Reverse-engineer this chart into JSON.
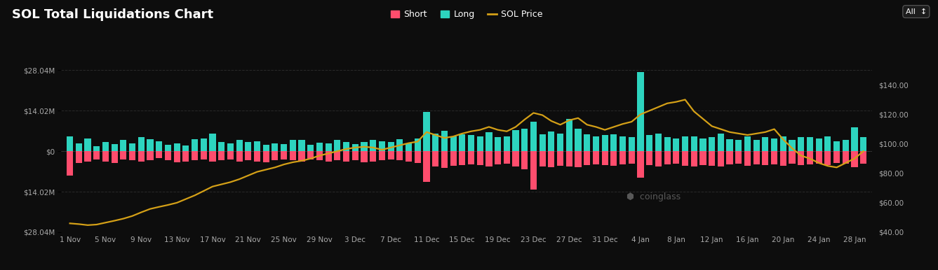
{
  "title": "SOL Total Liquidations Chart",
  "bg_color": "#0d0d0d",
  "plot_bg_color": "#0d0d0d",
  "bar_color_long": "#2dd4bf",
  "bar_color_short": "#ff4d6d",
  "price_line_color": "#d4a017",
  "grid_color": "#2a2a2a",
  "text_color": "#ffffff",
  "tick_label_color": "#aaaaaa",
  "left_ylim": [
    -28.04,
    28.04
  ],
  "right_ylim": [
    40,
    150
  ],
  "left_yticks": [
    28.04,
    14.02,
    0,
    -14.02,
    -28.04
  ],
  "left_yticklabels": [
    "$28.04M",
    "$14.02M",
    "$0",
    "$14.02M",
    "$28.04M"
  ],
  "right_yticks": [
    140,
    120,
    100,
    80,
    60,
    40
  ],
  "right_yticklabels": [
    "$140.00",
    "$120.00",
    "$100.00",
    "$80.00",
    "$60.00",
    "$40.00"
  ],
  "xtick_positions": [
    0,
    4,
    8,
    12,
    16,
    20,
    24,
    28,
    32,
    36,
    40,
    44,
    48,
    52,
    56,
    60,
    64,
    68,
    72,
    76,
    80,
    84,
    88
  ],
  "xtick_labels": [
    "1 Nov",
    "5 Nov",
    "9 Nov",
    "13 Nov",
    "17 Nov",
    "21 Nov",
    "25 Nov",
    "29 Nov",
    "3 Dec",
    "7 Dec",
    "11 Dec",
    "15 Dec",
    "19 Dec",
    "23 Dec",
    "27 Dec",
    "31 Dec",
    "4 Jan",
    "8 Jan",
    "12 Jan",
    "16 Jan",
    "20 Jan",
    "24 Jan",
    "28 Jan"
  ],
  "legend_items": [
    {
      "label": "Short",
      "color": "#ff4d6d"
    },
    {
      "label": "Long",
      "color": "#2dd4bf"
    },
    {
      "label": "SOL Price",
      "color": "#d4a017"
    }
  ],
  "long_values": [
    5.2,
    2.8,
    4.5,
    1.8,
    3.2,
    2.5,
    4.0,
    2.8,
    4.8,
    4.2,
    3.5,
    2.2,
    2.8,
    2.0,
    4.2,
    4.5,
    6.2,
    3.2,
    2.8,
    3.8,
    3.2,
    3.5,
    2.2,
    2.8,
    2.5,
    3.8,
    4.0,
    2.2,
    3.0,
    2.8,
    3.8,
    3.2,
    2.5,
    3.2,
    4.0,
    3.5,
    3.2,
    4.2,
    2.8,
    4.5,
    13.5,
    6.0,
    7.0,
    5.2,
    5.8,
    5.5,
    5.2,
    6.5,
    5.0,
    5.2,
    7.2,
    7.8,
    10.2,
    5.8,
    6.8,
    6.2,
    11.2,
    7.8,
    5.8,
    5.2,
    5.5,
    5.8,
    5.2,
    4.8,
    27.5,
    5.5,
    6.2,
    5.0,
    4.5,
    5.2,
    5.2,
    4.5,
    5.0,
    6.2,
    4.2,
    3.8,
    5.2,
    4.0,
    4.8,
    4.5,
    5.2,
    3.8,
    5.0,
    4.8,
    4.5,
    5.2,
    3.5,
    4.0,
    8.2,
    4.8
  ],
  "short_values": [
    -8.5,
    -4.0,
    -3.5,
    -2.8,
    -3.5,
    -4.0,
    -2.8,
    -3.2,
    -3.5,
    -3.2,
    -2.5,
    -3.2,
    -3.8,
    -3.5,
    -3.2,
    -2.8,
    -3.5,
    -3.2,
    -2.8,
    -3.5,
    -3.2,
    -3.5,
    -3.8,
    -3.2,
    -2.8,
    -3.2,
    -3.5,
    -2.8,
    -3.2,
    -3.5,
    -3.2,
    -3.5,
    -3.2,
    -3.8,
    -3.5,
    -3.2,
    -2.8,
    -3.2,
    -3.5,
    -4.0,
    -10.5,
    -5.2,
    -5.8,
    -5.0,
    -4.8,
    -4.5,
    -4.8,
    -5.2,
    -4.5,
    -4.2,
    -5.2,
    -6.2,
    -13.2,
    -5.2,
    -5.5,
    -5.0,
    -5.2,
    -5.5,
    -4.8,
    -4.5,
    -4.8,
    -5.0,
    -4.5,
    -4.2,
    -9.2,
    -4.8,
    -5.2,
    -4.5,
    -4.2,
    -5.0,
    -5.2,
    -4.8,
    -5.0,
    -5.2,
    -4.5,
    -4.2,
    -5.0,
    -4.5,
    -4.8,
    -4.5,
    -5.0,
    -4.2,
    -4.8,
    -4.5,
    -4.2,
    -4.8,
    -4.0,
    -4.2,
    -5.5,
    -4.2
  ],
  "sol_price": [
    46.0,
    45.5,
    44.8,
    45.2,
    46.5,
    47.8,
    49.2,
    51.0,
    53.5,
    55.8,
    57.2,
    58.5,
    60.0,
    62.5,
    65.0,
    68.0,
    71.0,
    72.5,
    74.0,
    76.0,
    78.5,
    81.0,
    82.5,
    84.0,
    86.0,
    87.5,
    88.5,
    90.0,
    92.0,
    93.5,
    95.0,
    96.5,
    97.5,
    98.0,
    97.5,
    96.0,
    97.5,
    99.0,
    100.5,
    101.5,
    108.0,
    106.0,
    104.0,
    105.0,
    107.0,
    108.5,
    109.5,
    111.5,
    109.5,
    108.5,
    111.5,
    116.5,
    121.0,
    119.5,
    115.5,
    113.0,
    116.0,
    117.5,
    113.0,
    111.5,
    109.5,
    111.5,
    113.5,
    115.0,
    120.0,
    122.5,
    125.0,
    127.5,
    128.5,
    130.0,
    122.0,
    117.0,
    112.0,
    110.0,
    108.0,
    107.0,
    106.0,
    107.0,
    108.0,
    110.0,
    103.0,
    97.0,
    92.0,
    90.0,
    87.0,
    85.0,
    84.0,
    87.0,
    90.0,
    95.0
  ]
}
